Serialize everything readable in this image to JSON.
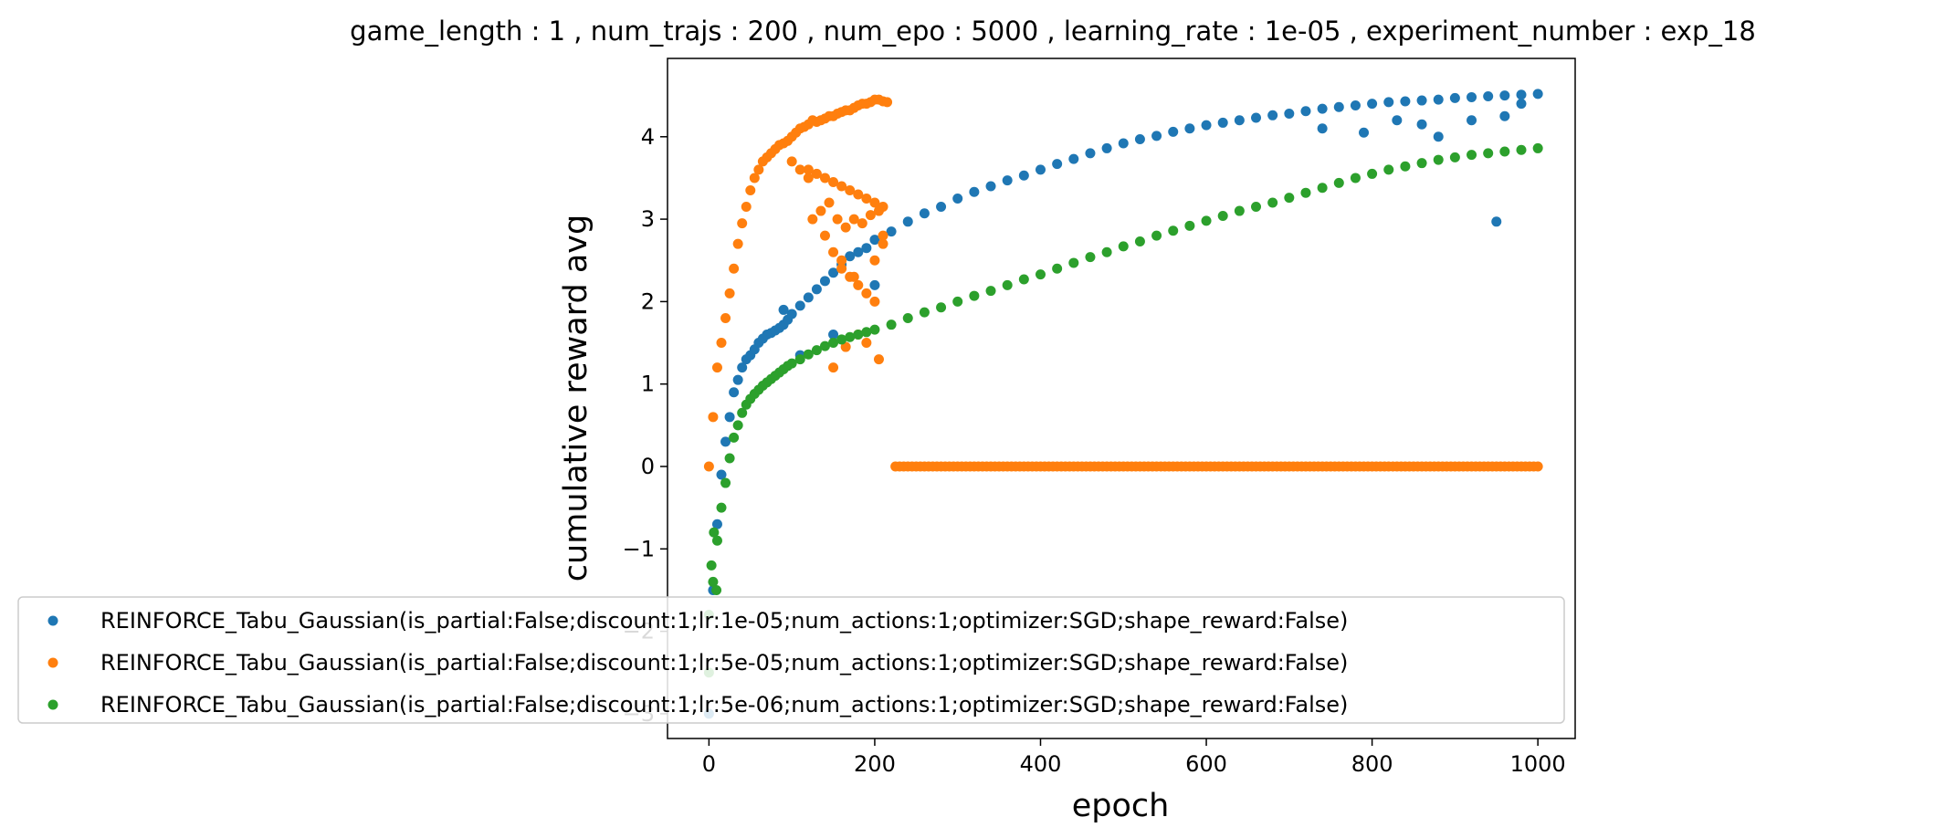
{
  "chart_data": {
    "type": "scatter",
    "title": "game_length : 1 , num_trajs : 200 , num_epo : 5000 , learning_rate : 1e-05 , experiment_number : exp_18",
    "xlabel": "epoch",
    "ylabel": "cumulative reward avg",
    "xlim": [
      -50,
      1045
    ],
    "ylim": [
      -3.3,
      4.95
    ],
    "xticks": [
      0,
      200,
      400,
      600,
      800,
      1000
    ],
    "yticks": [
      -3,
      -2,
      -1,
      0,
      1,
      2,
      3,
      4
    ],
    "grid": false,
    "legend_position": "lower-left",
    "series": [
      {
        "name": "REINFORCE_Tabu_Gaussian(is_partial:False;discount:1;lr:1e-05;num_actions:1;optimizer:SGD;shape_reward:False)",
        "color": "#1f77b4",
        "x": [
          0,
          5,
          10,
          15,
          20,
          25,
          30,
          35,
          40,
          45,
          50,
          55,
          60,
          65,
          70,
          75,
          80,
          85,
          90,
          95,
          100,
          110,
          120,
          130,
          140,
          150,
          160,
          170,
          180,
          190,
          200,
          220,
          240,
          260,
          280,
          300,
          320,
          340,
          360,
          380,
          400,
          420,
          440,
          460,
          480,
          500,
          520,
          540,
          560,
          580,
          600,
          620,
          640,
          660,
          680,
          700,
          720,
          740,
          760,
          780,
          800,
          820,
          840,
          860,
          880,
          900,
          920,
          940,
          960,
          980,
          1000,
          740,
          790,
          830,
          860,
          880,
          920,
          950,
          960,
          980,
          200,
          150,
          110,
          90
        ],
        "y": [
          -3.0,
          -1.5,
          -0.7,
          -0.1,
          0.3,
          0.6,
          0.9,
          1.05,
          1.2,
          1.3,
          1.35,
          1.42,
          1.5,
          1.55,
          1.6,
          1.62,
          1.65,
          1.68,
          1.72,
          1.78,
          1.85,
          1.95,
          2.05,
          2.15,
          2.25,
          2.35,
          2.45,
          2.55,
          2.6,
          2.65,
          2.75,
          2.85,
          2.97,
          3.07,
          3.15,
          3.25,
          3.33,
          3.4,
          3.47,
          3.53,
          3.6,
          3.67,
          3.73,
          3.8,
          3.86,
          3.92,
          3.97,
          4.01,
          4.06,
          4.1,
          4.14,
          4.17,
          4.2,
          4.23,
          4.26,
          4.28,
          4.31,
          4.34,
          4.36,
          4.38,
          4.4,
          4.42,
          4.43,
          4.44,
          4.45,
          4.47,
          4.48,
          4.49,
          4.5,
          4.51,
          4.52,
          4.1,
          4.05,
          4.2,
          4.15,
          4.0,
          4.2,
          2.97,
          4.25,
          4.4,
          2.2,
          1.6,
          1.35,
          1.9
        ]
      },
      {
        "name": "REINFORCE_Tabu_Gaussian(is_partial:False;discount:1;lr:5e-05;num_actions:1;optimizer:SGD;shape_reward:False)",
        "color": "#ff7f0e",
        "x": [
          0,
          5,
          10,
          15,
          20,
          25,
          30,
          35,
          40,
          45,
          50,
          55,
          60,
          65,
          70,
          75,
          80,
          85,
          90,
          95,
          100,
          105,
          110,
          115,
          120,
          125,
          130,
          135,
          140,
          145,
          150,
          155,
          160,
          165,
          170,
          175,
          180,
          185,
          190,
          195,
          200,
          205,
          210,
          215,
          120,
          130,
          140,
          150,
          160,
          170,
          180,
          190,
          200,
          210,
          140,
          150,
          160,
          170,
          180,
          190,
          200,
          210,
          125,
          135,
          145,
          155,
          165,
          175,
          185,
          195,
          205,
          100,
          110,
          120,
          160,
          175,
          190,
          205,
          150,
          165,
          180,
          200,
          210
        ],
        "y": [
          0.0,
          0.6,
          1.2,
          1.5,
          1.8,
          2.1,
          2.4,
          2.7,
          2.95,
          3.15,
          3.35,
          3.5,
          3.6,
          3.7,
          3.75,
          3.8,
          3.85,
          3.9,
          3.92,
          3.95,
          4.0,
          4.05,
          4.1,
          4.12,
          4.15,
          4.2,
          4.18,
          4.2,
          4.22,
          4.25,
          4.25,
          4.28,
          4.3,
          4.32,
          4.32,
          4.35,
          4.38,
          4.4,
          4.4,
          4.42,
          4.45,
          4.45,
          4.43,
          4.42,
          3.6,
          3.55,
          3.5,
          3.45,
          3.4,
          3.35,
          3.3,
          3.25,
          3.2,
          3.15,
          2.8,
          2.6,
          2.4,
          2.3,
          2.2,
          2.1,
          2.0,
          2.7,
          3.0,
          3.1,
          3.2,
          3.0,
          2.9,
          3.0,
          2.95,
          3.05,
          3.1,
          3.7,
          3.6,
          3.5,
          2.5,
          2.3,
          1.5,
          1.3,
          1.2,
          1.45,
          1.6,
          2.5,
          2.8
        ]
      },
      {
        "name": "REINFORCE_Tabu_Gaussian(is_partial:False;discount:1;lr:5e-06;num_actions:1;optimizer:SGD;shape_reward:False)",
        "color": "#2ca02c",
        "x": [
          0,
          5,
          10,
          15,
          20,
          25,
          30,
          35,
          40,
          45,
          50,
          55,
          60,
          65,
          70,
          75,
          80,
          85,
          90,
          95,
          100,
          110,
          120,
          130,
          140,
          150,
          160,
          170,
          180,
          190,
          200,
          220,
          240,
          260,
          280,
          300,
          320,
          340,
          360,
          380,
          400,
          420,
          440,
          460,
          480,
          500,
          520,
          540,
          560,
          580,
          600,
          620,
          640,
          660,
          680,
          700,
          720,
          740,
          760,
          780,
          800,
          820,
          840,
          860,
          880,
          900,
          920,
          940,
          960,
          980,
          1000,
          0,
          3,
          6,
          9
        ],
        "y": [
          -2.5,
          -1.4,
          -0.9,
          -0.5,
          -0.2,
          0.1,
          0.35,
          0.5,
          0.65,
          0.75,
          0.82,
          0.88,
          0.93,
          0.98,
          1.02,
          1.06,
          1.1,
          1.14,
          1.18,
          1.22,
          1.25,
          1.3,
          1.36,
          1.41,
          1.46,
          1.5,
          1.54,
          1.57,
          1.6,
          1.63,
          1.66,
          1.72,
          1.8,
          1.87,
          1.93,
          2.0,
          2.07,
          2.13,
          2.2,
          2.27,
          2.33,
          2.4,
          2.47,
          2.54,
          2.6,
          2.67,
          2.73,
          2.8,
          2.86,
          2.92,
          2.98,
          3.04,
          3.1,
          3.15,
          3.2,
          3.26,
          3.32,
          3.38,
          3.44,
          3.5,
          3.55,
          3.6,
          3.64,
          3.68,
          3.72,
          3.75,
          3.78,
          3.8,
          3.82,
          3.84,
          3.86,
          -1.8,
          -1.2,
          -0.8,
          -1.5
        ]
      },
      {
        "name": "REINFORCE_Tabu_Gaussian(is_partial:False;discount:1;lr:5e-05;num_actions:1;optimizer:SGD;shape_reward:False)",
        "color": "#ff7f0e",
        "x_range": [
          225,
          1000
        ],
        "constant_y": 0.0,
        "legend": false
      }
    ]
  }
}
